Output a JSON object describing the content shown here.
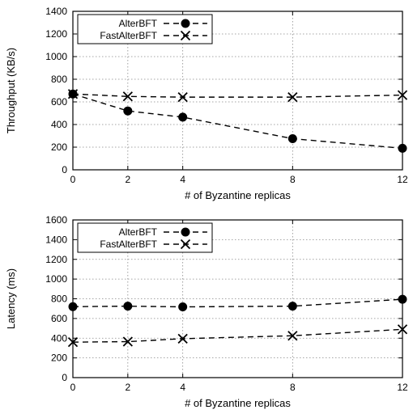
{
  "chart_data": [
    {
      "type": "line",
      "xlabel": "# of Byzantine replicas",
      "ylabel": "Throughput (KB/s)",
      "x": [
        0,
        2,
        4,
        8,
        12
      ],
      "xlim": [
        0,
        12
      ],
      "ylim": [
        0,
        1400
      ],
      "xticks": [
        "0",
        "2",
        "4",
        "8",
        "12"
      ],
      "yticks": [
        "0",
        "200",
        "400",
        "600",
        "800",
        "1000",
        "1200",
        "1400"
      ],
      "grid": true,
      "legend_position": "top-left",
      "series": [
        {
          "name": "AlterBFT",
          "marker": "circle",
          "values": [
            670,
            520,
            465,
            275,
            190
          ]
        },
        {
          "name": "FastAlterBFT",
          "marker": "cross",
          "values": [
            670,
            648,
            642,
            642,
            660
          ]
        }
      ]
    },
    {
      "type": "line",
      "xlabel": "# of Byzantine replicas",
      "ylabel": "Latency (ms)",
      "x": [
        0,
        2,
        4,
        8,
        12
      ],
      "xlim": [
        0,
        12
      ],
      "ylim": [
        0,
        1600
      ],
      "xticks": [
        "0",
        "2",
        "4",
        "8",
        "12"
      ],
      "yticks": [
        "0",
        "200",
        "400",
        "600",
        "800",
        "1000",
        "1200",
        "1400",
        "1600"
      ],
      "grid": true,
      "legend_position": "top-left",
      "series": [
        {
          "name": "AlterBFT",
          "marker": "circle",
          "values": [
            720,
            725,
            718,
            725,
            795
          ]
        },
        {
          "name": "FastAlterBFT",
          "marker": "cross",
          "values": [
            360,
            365,
            395,
            425,
            490
          ]
        }
      ]
    }
  ]
}
